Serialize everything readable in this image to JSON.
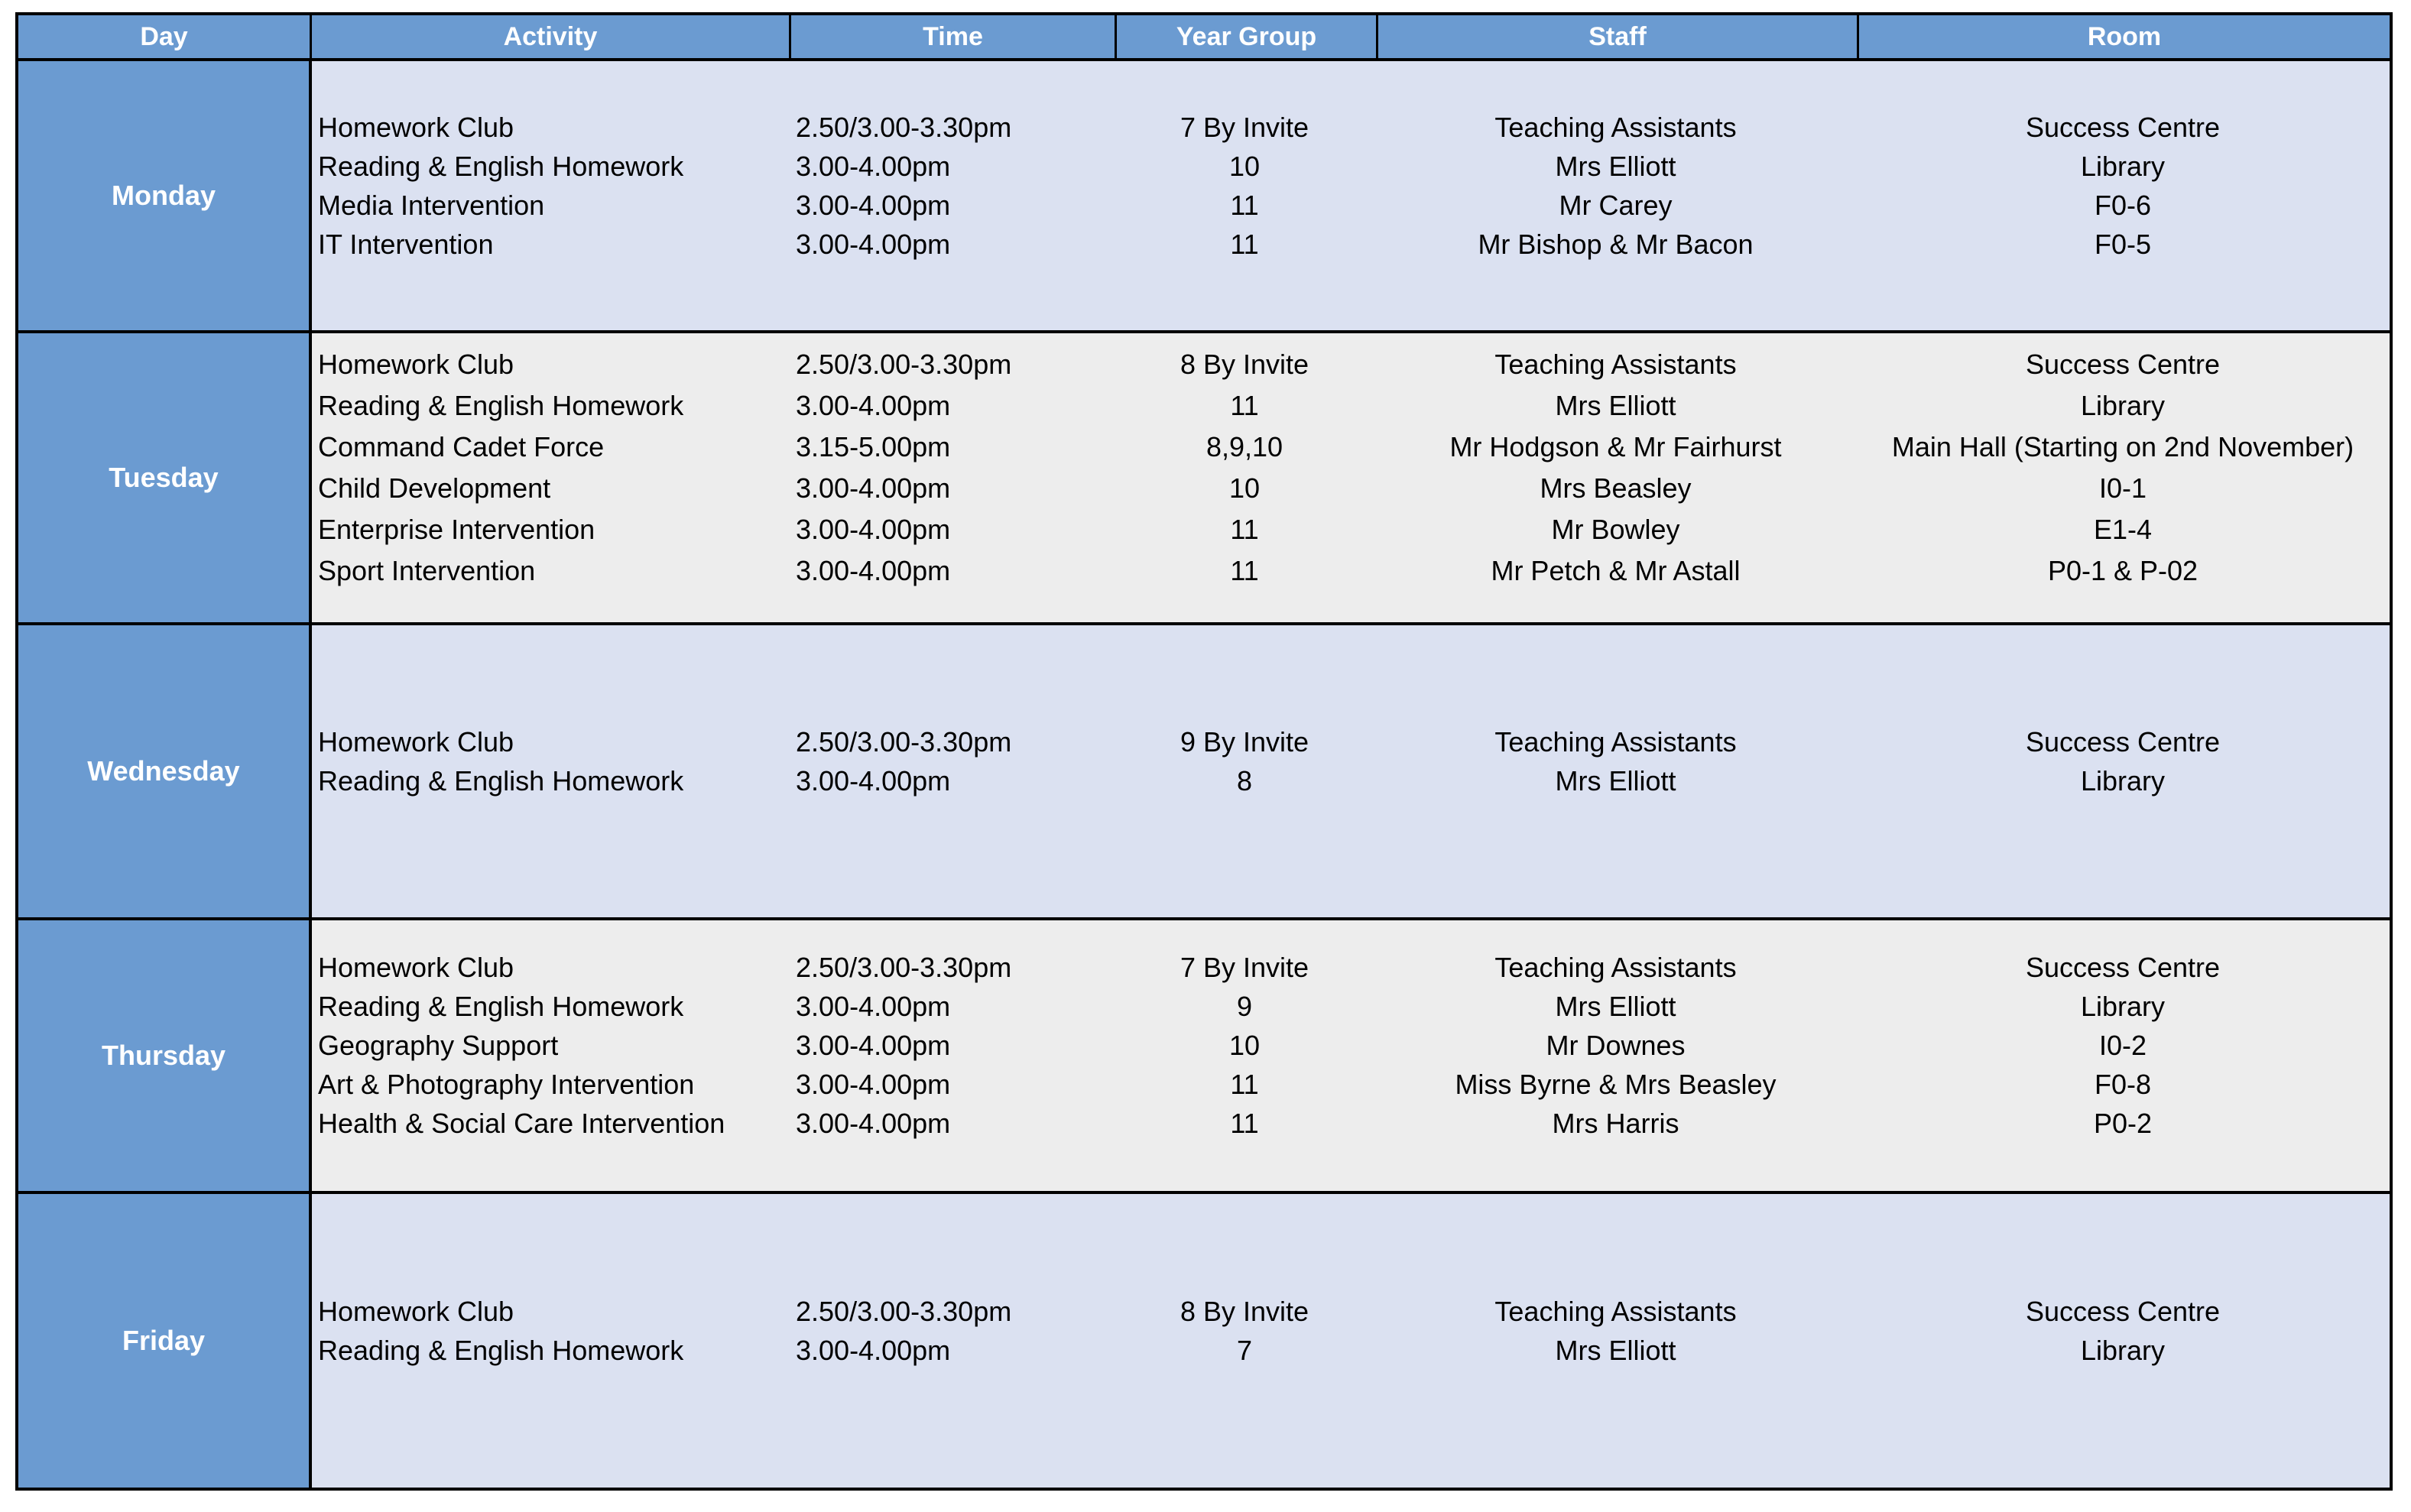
{
  "headers": [
    "Day",
    "Activity",
    "Time",
    "Year Group",
    "Staff",
    "Room"
  ],
  "colors": {
    "header": "#6b9bd1",
    "band_blue": "#dbe1f1",
    "band_grey": "#ededed"
  },
  "days": [
    {
      "day": "Monday",
      "rows": [
        [
          "Homework Club",
          "2.50/3.00-3.30pm",
          "7 By Invite",
          "Teaching Assistants",
          "Success Centre"
        ],
        [
          "Reading & English Homework",
          "3.00-4.00pm",
          "10",
          "Mrs Elliott",
          "Library"
        ],
        [
          "Media Intervention",
          "3.00-4.00pm",
          "11",
          "Mr Carey",
          "F0-6"
        ],
        [
          "IT Intervention",
          "3.00-4.00pm",
          "11",
          "Mr Bishop & Mr Bacon",
          "F0-5"
        ]
      ]
    },
    {
      "day": "Tuesday",
      "rows": [
        [
          "Homework Club",
          "2.50/3.00-3.30pm",
          "8 By Invite",
          "Teaching Assistants",
          "Success Centre"
        ],
        [
          "Reading & English Homework",
          "3.00-4.00pm",
          "11",
          "Mrs Elliott",
          "Library"
        ],
        [
          "Command Cadet Force",
          "3.15-5.00pm",
          "8,9,10",
          "Mr Hodgson & Mr Fairhurst",
          "Main Hall (Starting on 2nd November)"
        ],
        [
          "Child Development",
          "3.00-4.00pm",
          "10",
          "Mrs Beasley",
          "I0-1"
        ],
        [
          "Enterprise Intervention",
          "3.00-4.00pm",
          "11",
          "Mr Bowley",
          "E1-4"
        ],
        [
          "Sport Intervention",
          "3.00-4.00pm",
          "11",
          "Mr Petch & Mr Astall",
          "P0-1 & P-02"
        ]
      ]
    },
    {
      "day": "Wednesday",
      "rows": [
        [
          "Homework Club",
          "2.50/3.00-3.30pm",
          "9 By Invite",
          "Teaching Assistants",
          "Success Centre"
        ],
        [
          "Reading & English Homework",
          "3.00-4.00pm",
          "8",
          "Mrs Elliott",
          "Library"
        ]
      ]
    },
    {
      "day": "Thursday",
      "rows": [
        [
          "Homework Club",
          "2.50/3.00-3.30pm",
          "7 By Invite",
          "Teaching Assistants",
          "Success Centre"
        ],
        [
          "Reading & English Homework",
          "3.00-4.00pm",
          "9",
          "Mrs Elliott",
          "Library"
        ],
        [
          "Geography Support",
          "3.00-4.00pm",
          "10",
          "Mr Downes",
          "I0-2"
        ],
        [
          "Art & Photography Intervention",
          "3.00-4.00pm",
          "11",
          "Miss Byrne & Mrs Beasley",
          "F0-8"
        ],
        [
          "Health & Social Care Intervention",
          "3.00-4.00pm",
          "11",
          "Mrs Harris",
          "P0-2"
        ]
      ]
    },
    {
      "day": "Friday",
      "rows": [
        [
          "Homework Club",
          "2.50/3.00-3.30pm",
          "8 By Invite",
          "Teaching Assistants",
          "Success Centre"
        ],
        [
          "Reading & English Homework",
          "3.00-4.00pm",
          "7",
          "Mrs Elliott",
          "Library"
        ]
      ]
    }
  ]
}
